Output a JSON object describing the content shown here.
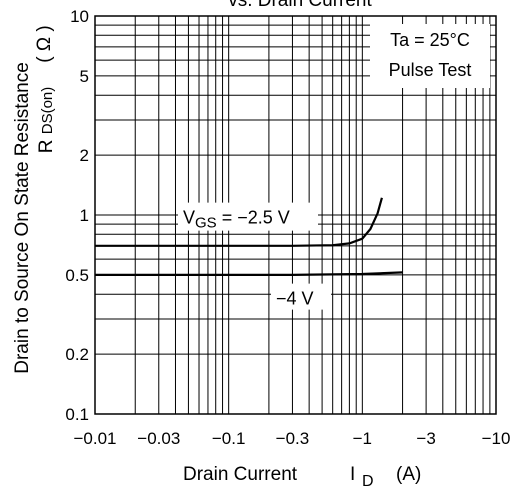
{
  "chart_data": {
    "type": "line",
    "title": "vs. Drain Current",
    "xlabel": "Drain Current",
    "xlabel_symbol": "I",
    "xlabel_sub": "D",
    "xlabel_unit": "(A)",
    "ylabel": "Drain to Source On State Resistance",
    "ylabel_symbol": "R",
    "ylabel_sub": "DS(on)",
    "ylabel_unit": "( Ω )",
    "x_scale": "log",
    "y_scale": "log",
    "x_axis_reversed_negative": true,
    "xlim": [
      -0.01,
      -10
    ],
    "ylim": [
      0.1,
      10
    ],
    "x_ticks": [
      -0.01,
      -0.03,
      -0.1,
      -0.3,
      -1,
      -3,
      -10
    ],
    "x_tick_labels": [
      "−0.01",
      "−0.03",
      "−0.1",
      "−0.3",
      "−1",
      "−3",
      "−10"
    ],
    "y_ticks": [
      0.1,
      0.2,
      0.5,
      1,
      2,
      5,
      10
    ],
    "y_tick_labels": [
      "0.1",
      "0.2",
      "0.5",
      "1",
      "2",
      "5",
      "10"
    ],
    "grid": true,
    "conditions": [
      "Ta = 25°C",
      "Pulse Test"
    ],
    "series": [
      {
        "name": "VGS = −2.5 V",
        "label_main": "V",
        "label_sub": "GS",
        "label_rest": " = −2.5 V",
        "x": [
          -0.01,
          -0.03,
          -0.1,
          -0.3,
          -0.6,
          -0.8,
          -1.0,
          -1.15,
          -1.3,
          -1.4
        ],
        "y": [
          0.7,
          0.7,
          0.7,
          0.7,
          0.705,
          0.72,
          0.76,
          0.85,
          1.02,
          1.22
        ]
      },
      {
        "name": "−4 V",
        "label_main": "−4 V",
        "label_sub": "",
        "label_rest": "",
        "x": [
          -0.01,
          -0.1,
          -0.3,
          -1,
          -2
        ],
        "y": [
          0.5,
          0.5,
          0.5,
          0.505,
          0.515
        ]
      }
    ]
  }
}
